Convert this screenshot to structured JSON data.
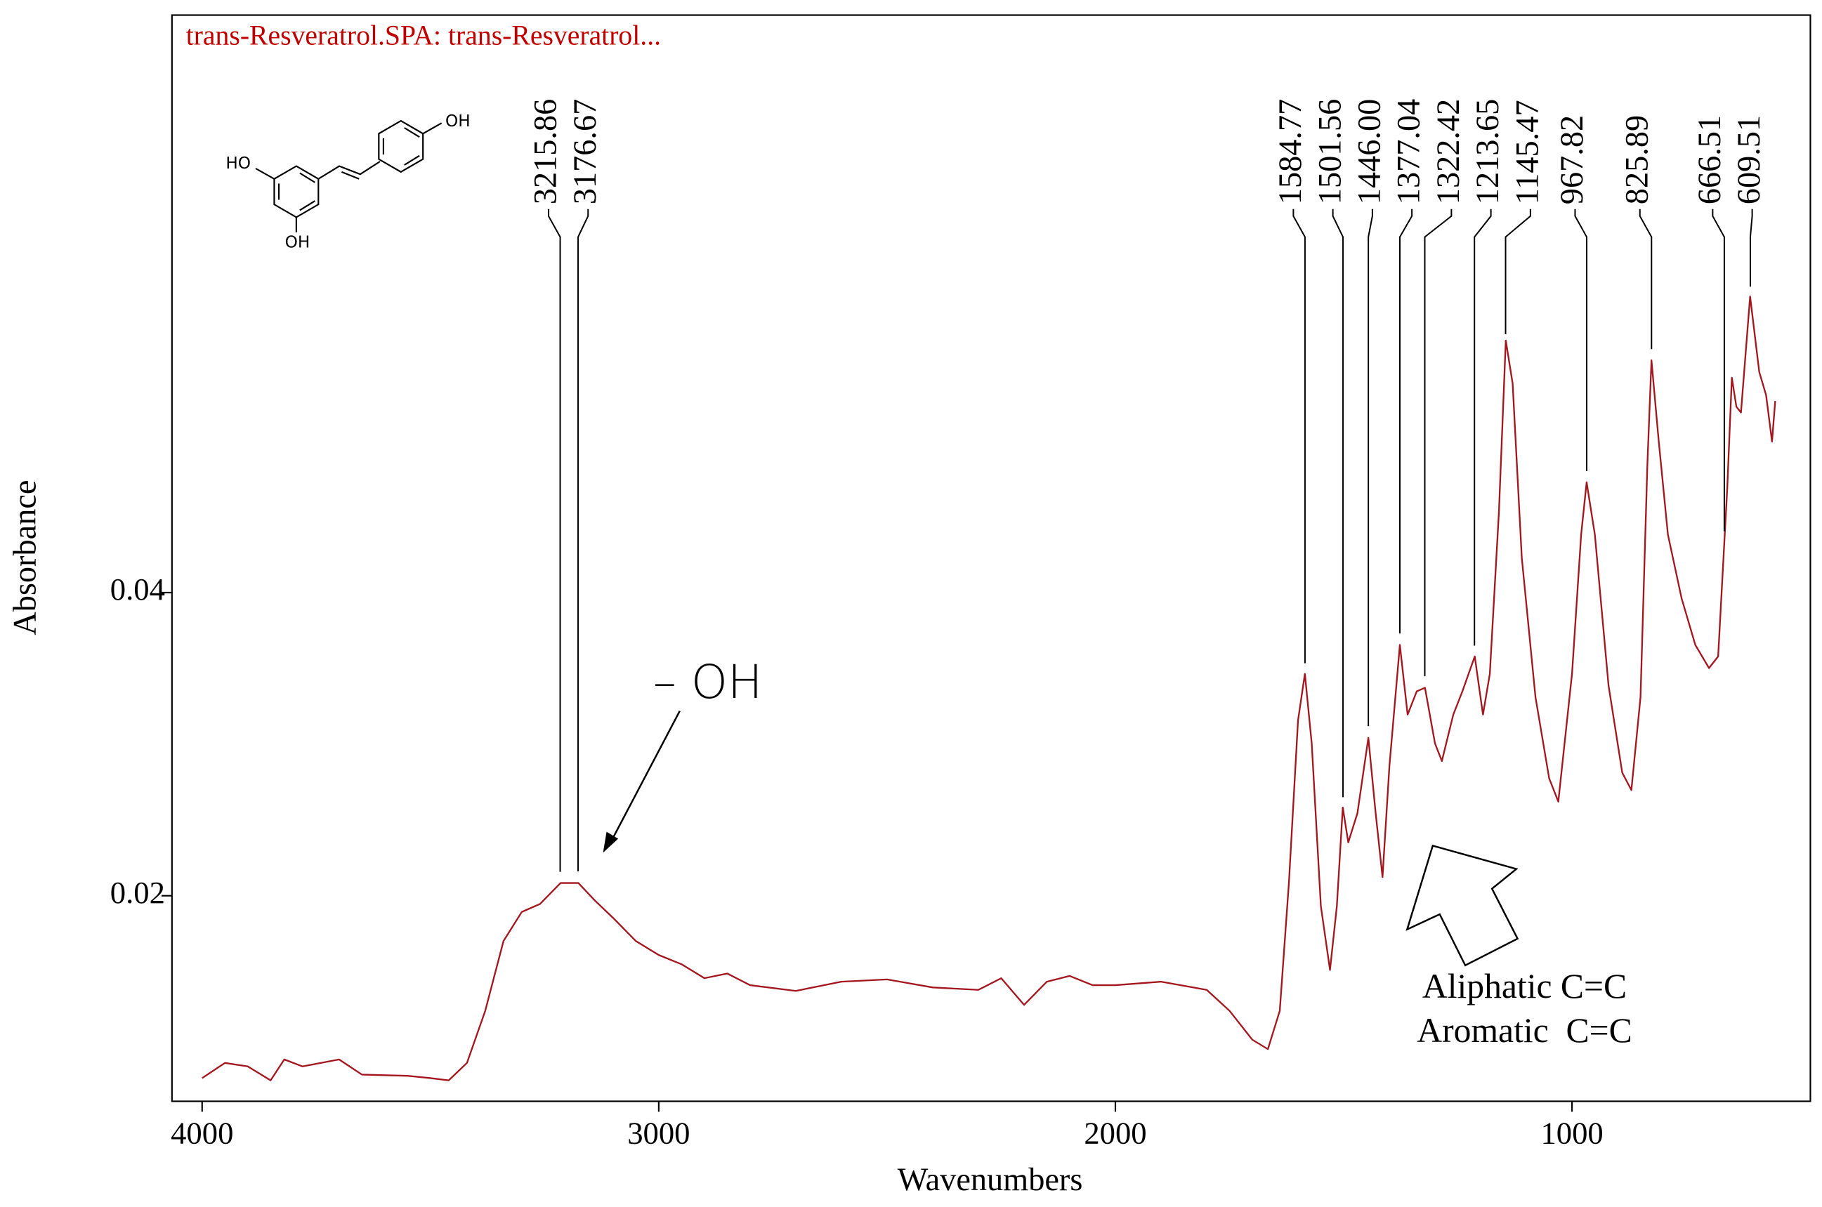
{
  "chart_data": {
    "type": "line",
    "title": "trans-Resveratrol.SPA: trans-Resveratrol...",
    "xlabel": "Wavenumbers",
    "ylabel": "Absorbance",
    "color": "#a3161e",
    "xlim": [
      4066,
      478
    ],
    "ylim": [
      0.00644,
      0.0781
    ],
    "xticks": [
      4000,
      3000,
      2000,
      1000
    ],
    "yticks": [
      0.02,
      0.04
    ],
    "x": [
      4000,
      3950,
      3900,
      3850,
      3820,
      3780,
      3700,
      3650,
      3550,
      3500,
      3460,
      3420,
      3380,
      3340,
      3300,
      3260,
      3215,
      3176,
      3140,
      3100,
      3050,
      3000,
      2950,
      2900,
      2850,
      2800,
      2700,
      2600,
      2500,
      2400,
      2300,
      2250,
      2200,
      2150,
      2100,
      2050,
      2000,
      1900,
      1800,
      1750,
      1700,
      1666,
      1640,
      1620,
      1600,
      1585,
      1570,
      1550,
      1530,
      1515,
      1502,
      1490,
      1470,
      1446,
      1430,
      1415,
      1400,
      1377,
      1360,
      1340,
      1322,
      1300,
      1285,
      1260,
      1240,
      1213,
      1195,
      1180,
      1160,
      1145,
      1130,
      1110,
      1080,
      1050,
      1030,
      1000,
      980,
      968,
      950,
      920,
      890,
      870,
      850,
      835,
      826,
      810,
      790,
      760,
      730,
      700,
      680,
      660,
      650,
      640,
      630,
      610,
      590,
      575,
      562,
      555
    ],
    "values": [
      0.00797,
      0.00897,
      0.00874,
      0.00782,
      0.0092,
      0.00874,
      0.0092,
      0.0082,
      0.00812,
      0.00797,
      0.00782,
      0.00897,
      0.01241,
      0.01701,
      0.01893,
      0.01946,
      0.02084,
      0.02084,
      0.01969,
      0.01854,
      0.01701,
      0.01609,
      0.01548,
      0.01456,
      0.01487,
      0.0141,
      0.01372,
      0.01433,
      0.01448,
      0.01395,
      0.01379,
      0.01456,
      0.0128,
      0.01433,
      0.01471,
      0.0141,
      0.0141,
      0.01433,
      0.01379,
      0.01241,
      0.0105,
      0.00988,
      0.01241,
      0.02084,
      0.03157,
      0.03464,
      0.03004,
      0.01931,
      0.0151,
      0.01931,
      0.02582,
      0.02352,
      0.02544,
      0.03042,
      0.02544,
      0.02123,
      0.02851,
      0.03655,
      0.03195,
      0.03349,
      0.03372,
      0.03004,
      0.02889,
      0.03195,
      0.03349,
      0.03579,
      0.03195,
      0.03464,
      0.04536,
      0.05663,
      0.05379,
      0.0423,
      0.0331,
      0.02774,
      0.02621,
      0.03464,
      0.04383,
      0.04728,
      0.04383,
      0.03387,
      0.02812,
      0.02697,
      0.0331,
      0.04843,
      0.05533,
      0.04996,
      0.04383,
      0.03962,
      0.03655,
      0.03502,
      0.03579,
      0.0469,
      0.05418,
      0.05226,
      0.05188,
      0.05954,
      0.05456,
      0.05303,
      0.04996,
      0.05264
    ],
    "peak_labels": [
      {
        "value": 3215.86,
        "label": "3215.86"
      },
      {
        "value": 3176.67,
        "label": "3176.67"
      },
      {
        "value": 1584.77,
        "label": "1584.77"
      },
      {
        "value": 1501.56,
        "label": "1501.56"
      },
      {
        "value": 1446.0,
        "label": "1446.00"
      },
      {
        "value": 1377.04,
        "label": "1377.04"
      },
      {
        "value": 1322.42,
        "label": "1322.42"
      },
      {
        "value": 1213.65,
        "label": "1213.65"
      },
      {
        "value": 1145.47,
        "label": "1145.47"
      },
      {
        "value": 967.82,
        "label": "967.82"
      },
      {
        "value": 825.89,
        "label": "825.89"
      },
      {
        "value": 666.51,
        "label": "666.51"
      },
      {
        "value": 609.51,
        "label": "609.51"
      }
    ],
    "annotations": [
      "– OH",
      "Aliphatic C=C",
      "Aromatic  C=C"
    ],
    "structure_labels": [
      "HO",
      "OH",
      "OH"
    ]
  }
}
